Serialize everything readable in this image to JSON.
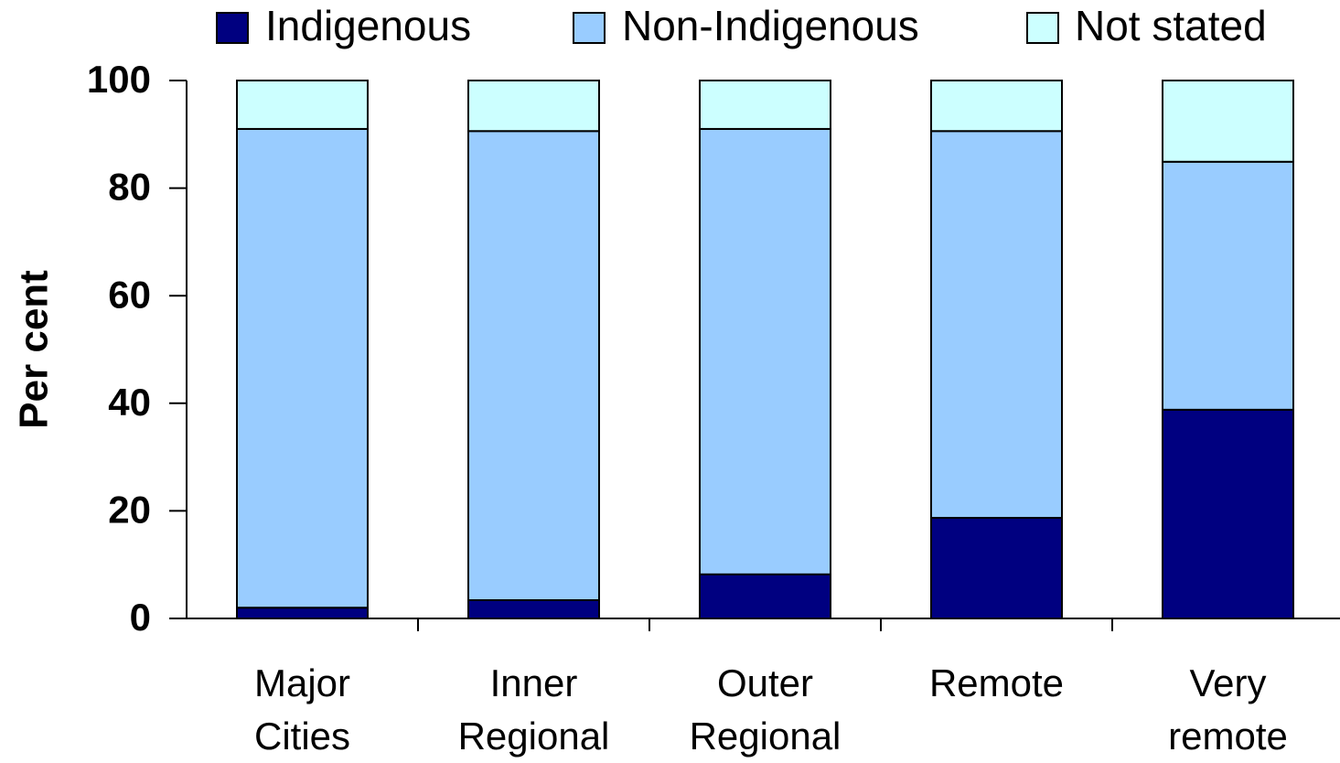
{
  "chart_data": {
    "type": "stacked_bar",
    "y_label": "Per cent",
    "categories": [
      [
        "Major",
        "Cities"
      ],
      [
        "Inner",
        "Regional"
      ],
      [
        "Outer",
        "Regional"
      ],
      [
        "Remote"
      ],
      [
        "Very",
        "remote"
      ]
    ],
    "series": [
      {
        "name": "Indigenous",
        "color": "#000080",
        "values": [
          2.0,
          3.4,
          8.2,
          18.7,
          38.8
        ]
      },
      {
        "name": "Non-Indigenous",
        "color": "#99ccff",
        "values": [
          89.0,
          87.2,
          82.8,
          71.9,
          46.1
        ]
      },
      {
        "name": "Not stated",
        "color": "#ccffff",
        "values": [
          9.0,
          9.4,
          9.0,
          9.4,
          15.1
        ]
      }
    ],
    "ylim": [
      0,
      100
    ],
    "yticks": [
      0,
      20,
      40,
      60,
      80,
      100
    ],
    "grid": false,
    "legend": "top"
  }
}
